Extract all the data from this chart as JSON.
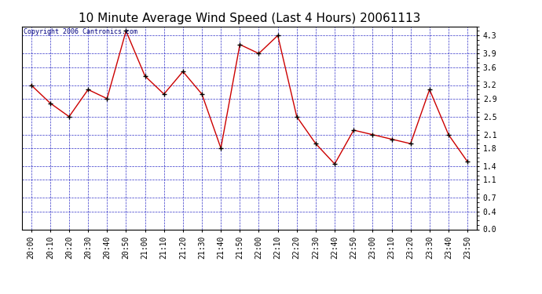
{
  "title": "10 Minute Average Wind Speed (Last 4 Hours) 20061113",
  "copyright_text": "Copyright 2006 Cantronics.com",
  "x_labels": [
    "20:00",
    "20:10",
    "20:20",
    "20:30",
    "20:40",
    "20:50",
    "21:00",
    "21:10",
    "21:20",
    "21:30",
    "21:40",
    "21:50",
    "22:00",
    "22:10",
    "22:20",
    "22:30",
    "22:40",
    "22:50",
    "23:00",
    "23:10",
    "23:20",
    "23:30",
    "23:40",
    "23:50"
  ],
  "y_values": [
    3.2,
    2.8,
    2.5,
    3.1,
    2.9,
    4.4,
    3.4,
    3.0,
    3.5,
    3.0,
    1.8,
    4.1,
    3.9,
    4.3,
    2.5,
    1.9,
    1.45,
    2.2,
    2.1,
    2.0,
    1.9,
    3.1,
    2.1,
    1.5
  ],
  "y_ticks": [
    0.0,
    0.4,
    0.7,
    1.1,
    1.4,
    1.8,
    2.1,
    2.5,
    2.9,
    3.2,
    3.6,
    3.9,
    4.3
  ],
  "ylim": [
    0.0,
    4.5
  ],
  "line_color": "#cc0000",
  "bg_color": "#ffffff",
  "grid_color": "#0000bb",
  "title_fontsize": 11,
  "copyright_fontsize": 6,
  "tick_fontsize": 7
}
